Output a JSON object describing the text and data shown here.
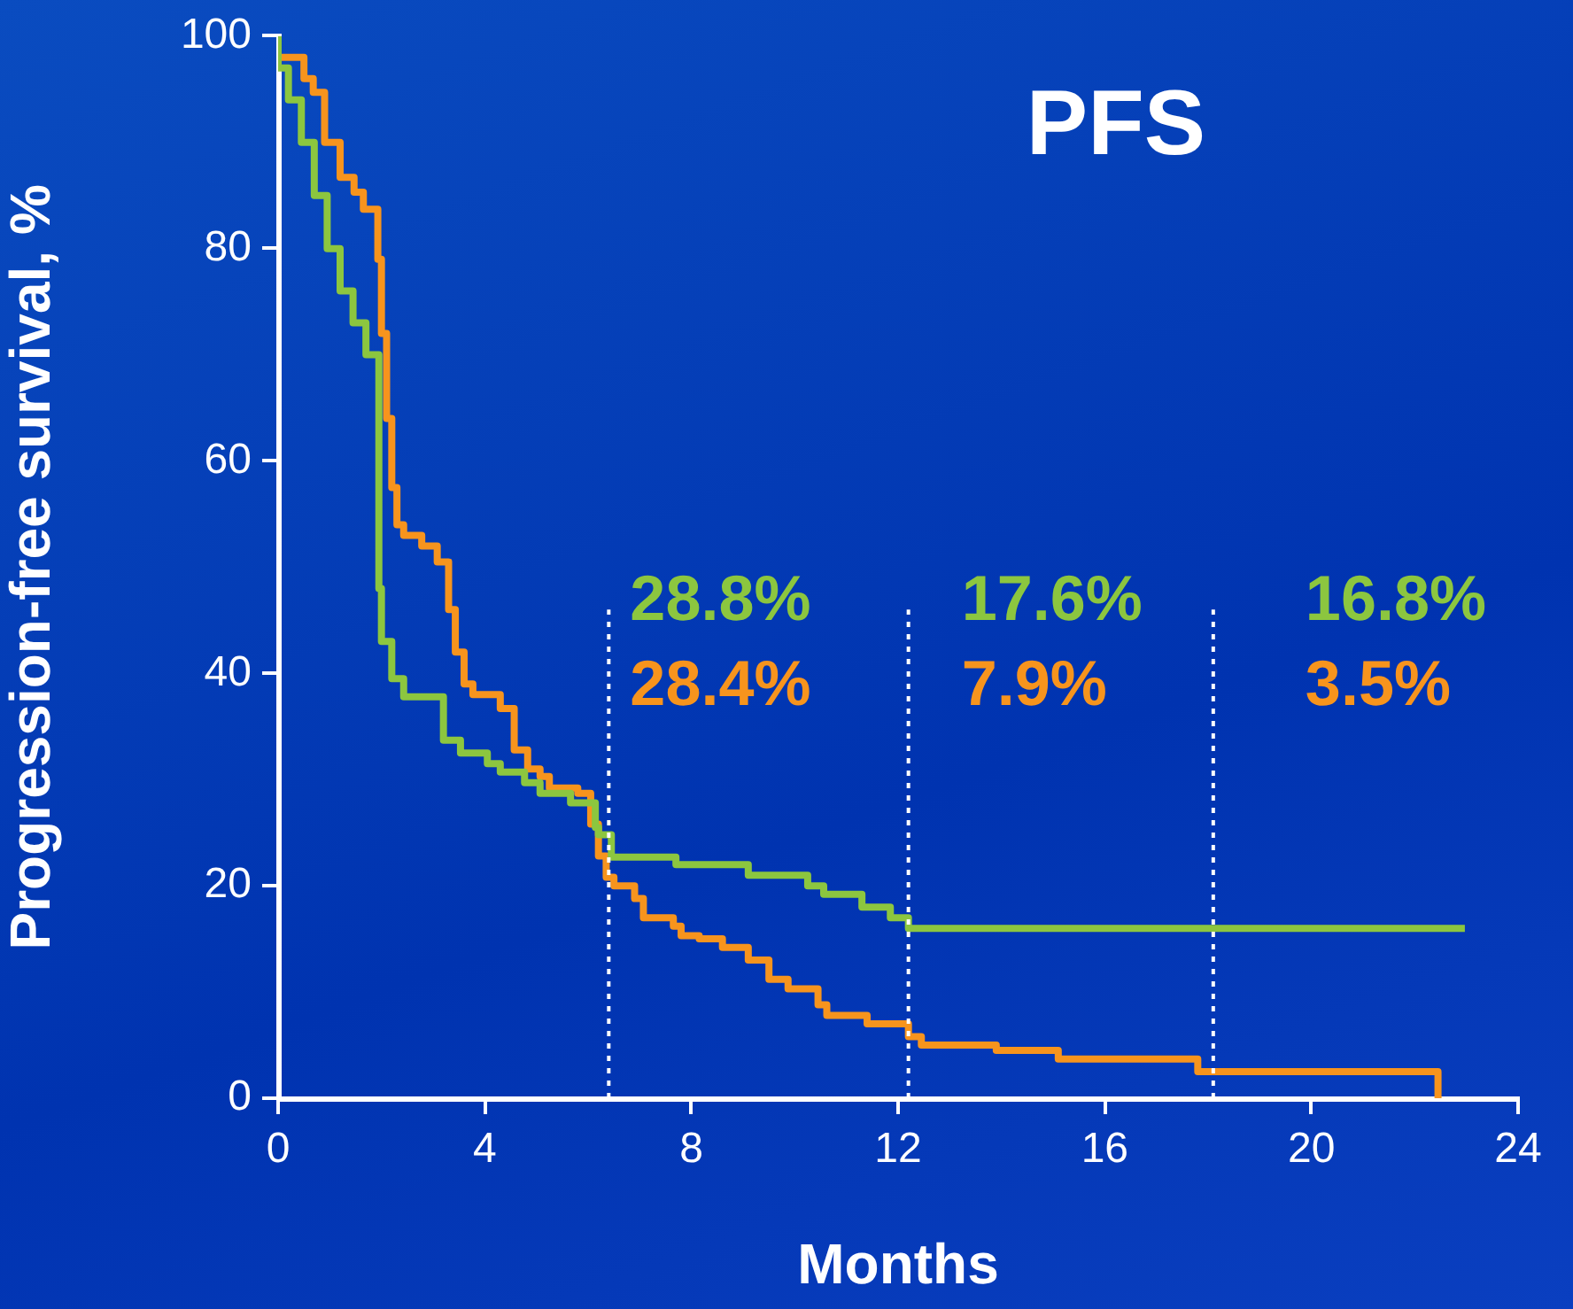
{
  "chart_data": {
    "type": "step",
    "title": "PFS",
    "xlabel": "Months",
    "ylabel": "Progression-free survival, %",
    "series": [
      {
        "color": "#8cc63f",
        "x": [
          0,
          0.2,
          0.45,
          0.7,
          0.95,
          1.2,
          1.45,
          1.7,
          1.95,
          2.0,
          2.2,
          2.43,
          3.2,
          3.53,
          4.05,
          4.3,
          4.77,
          5.07,
          5.66,
          6.14,
          6.2,
          6.45,
          7.7,
          9.1,
          10.25,
          10.56,
          11.3,
          11.85,
          12.2,
          14.05,
          22.97
        ],
        "values": [
          100,
          97,
          94,
          90,
          85,
          80,
          76,
          73,
          70,
          48,
          43,
          39.5,
          37.8,
          33.7,
          32.5,
          31.5,
          30.7,
          29.7,
          28.7,
          27.8,
          25.5,
          24.8,
          22.7,
          22,
          21,
          20,
          19.2,
          18,
          17,
          16,
          16
        ]
      },
      {
        "color": "#f7941d",
        "x": [
          0,
          0.5,
          0.68,
          0.9,
          1.2,
          1.47,
          1.65,
          1.93,
          2.0,
          2.1,
          2.2,
          2.3,
          2.43,
          2.78,
          3.08,
          3.3,
          3.43,
          3.6,
          3.77,
          4.3,
          4.57,
          4.83,
          5.07,
          5.25,
          5.8,
          6.05,
          6.2,
          6.35,
          6.5,
          6.9,
          7.07,
          7.65,
          7.8,
          8.15,
          8.6,
          9.1,
          9.5,
          9.87,
          10.45,
          10.62,
          11.4,
          12.2,
          12.45,
          13.9,
          15.1,
          17.8,
          18.7,
          22.45,
          22.45
        ],
        "values": [
          100,
          98,
          96,
          94.7,
          90,
          86.7,
          85.3,
          83.7,
          79,
          72,
          64,
          57.5,
          54,
          53,
          52,
          50.5,
          46,
          42,
          39,
          38,
          36.7,
          32.8,
          31,
          30.3,
          29.2,
          28.7,
          25.8,
          22.8,
          20.8,
          20,
          18.8,
          17,
          16.2,
          15.3,
          15,
          14.2,
          13,
          11.2,
          10.3,
          8.8,
          7.8,
          7,
          5.8,
          5,
          4.5,
          3.7,
          2.5,
          2.5,
          0
        ]
      }
    ],
    "xlim": [
      0,
      24
    ],
    "xticks": [
      0,
      4,
      8,
      12,
      16,
      20,
      24
    ],
    "ylim": [
      0,
      100
    ],
    "yticks": [
      0,
      20,
      40,
      60,
      80,
      100
    ],
    "ref_lines": [
      {
        "axis": "x",
        "value": 6.4,
        "color": "#ffffff",
        "line_style": "dotted"
      },
      {
        "axis": "x",
        "value": 12.2,
        "color": "#ffffff",
        "line_style": "dotted"
      },
      {
        "axis": "x",
        "value": 18.1,
        "color": "#ffffff",
        "line_style": "dotted"
      }
    ],
    "annotations": [
      "28.8%",
      "28.4%",
      "17.6%",
      "7.9%",
      "16.8%",
      "3.5%"
    ],
    "grid": false,
    "legend": false,
    "marker": "none",
    "line_style": "solid"
  }
}
